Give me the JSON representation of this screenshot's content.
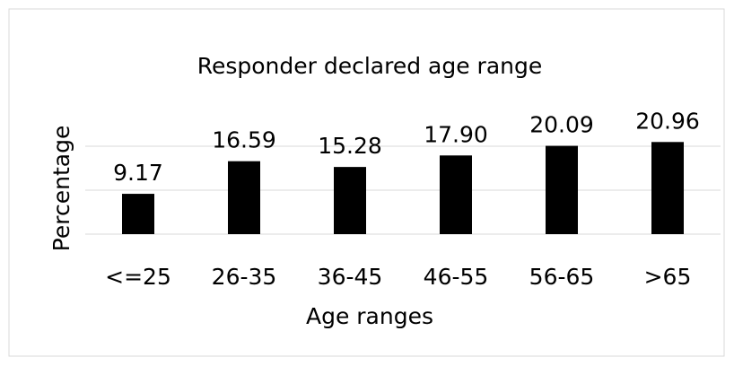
{
  "chart_data": {
    "type": "bar",
    "title": "Responder declared age range",
    "x_label": "Age ranges",
    "y_label": "Percentage",
    "categories": [
      "<=25",
      "26-35",
      "36-45",
      "46-55",
      "56-65",
      ">65"
    ],
    "values": [
      9.17,
      16.59,
      15.28,
      17.9,
      20.09,
      20.96
    ],
    "value_labels": [
      "9.17",
      "16.59",
      "15.28",
      "17.90",
      "20.09",
      "20.96"
    ],
    "color": "#000000",
    "ylim": [
      0,
      25
    ],
    "yticks": [
      0,
      10,
      20
    ],
    "grid": true
  }
}
